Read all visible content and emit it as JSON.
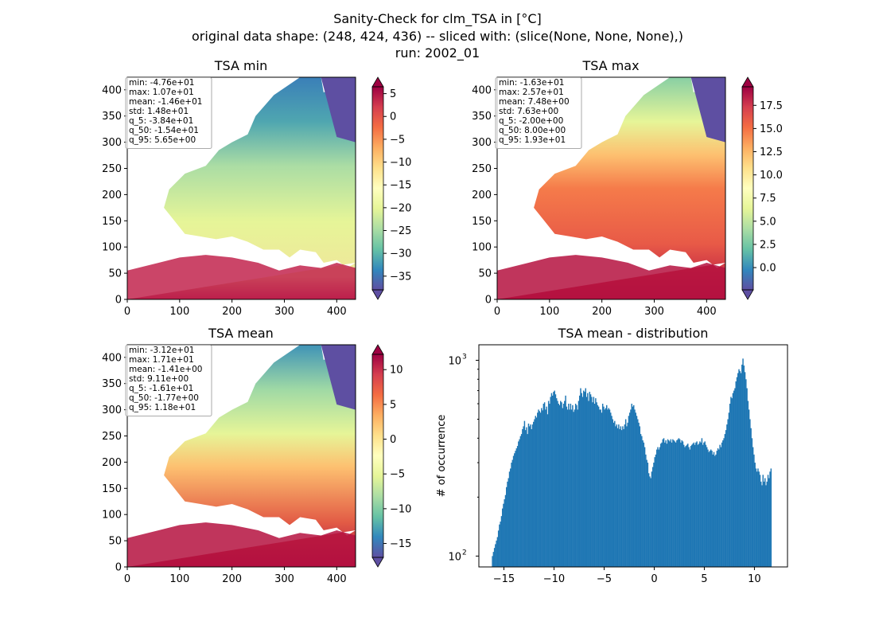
{
  "figure": {
    "suptitle": "Sanity-Check for clm_TSA in [°C]",
    "subtitle": "original data shape: (248, 424, 436) -- sliced with: (slice(None, None, None),)",
    "run": "run: 2002_01"
  },
  "colors": {
    "land_polygon_note": "Spectral_r colormap",
    "hist_bar": "#1f77b4",
    "stat_box_border": "#aaaaaa"
  },
  "map_axes": {
    "xticks": [
      "0",
      "100",
      "200",
      "300",
      "400"
    ],
    "yticks": [
      "0",
      "50",
      "100",
      "150",
      "200",
      "250",
      "300",
      "350",
      "400"
    ]
  },
  "panels": [
    {
      "title": "TSA min",
      "stats": [
        "min: -4.76e+01",
        "max: 1.07e+01",
        "mean: -1.46e+01",
        "std: 1.48e+01",
        "q_5: -3.84e+01",
        "q_50: -1.54e+01",
        "q_95: 5.65e+00"
      ],
      "colorbar": {
        "range": [
          -38,
          6.5
        ],
        "ticks": [
          "5",
          "0",
          "−5",
          "−10",
          "−15",
          "−20",
          "−25",
          "−30",
          "−35"
        ],
        "values": [
          5,
          0,
          -5,
          -10,
          -15,
          -20,
          -25,
          -30,
          -35
        ]
      }
    },
    {
      "title": "TSA max",
      "stats": [
        "min: -1.63e+01",
        "max: 2.57e+01",
        "mean: 7.48e+00",
        "std: 7.63e+00",
        "q_5: -2.00e+00",
        "q_50: 8.00e+00",
        "q_95: 1.93e+01"
      ],
      "colorbar": {
        "range": [
          -2.4,
          19.5
        ],
        "ticks": [
          "17.5",
          "15.0",
          "12.5",
          "10.0",
          "7.5",
          "5.0",
          "2.5",
          "0.0"
        ],
        "values": [
          17.5,
          15,
          12.5,
          10,
          7.5,
          5,
          2.5,
          0
        ]
      }
    },
    {
      "title": "TSA mean",
      "stats": [
        "min: -3.12e+01",
        "max: 1.71e+01",
        "mean: -1.41e+00",
        "std: 9.11e+00",
        "q_5: -1.61e+01",
        "q_50: -1.77e+00",
        "q_95: 1.18e+01"
      ],
      "colorbar": {
        "range": [
          -17,
          12.2
        ],
        "ticks": [
          "10",
          "5",
          "0",
          "−5",
          "−10",
          "−15"
        ],
        "values": [
          10,
          5,
          0,
          -5,
          -10,
          -15
        ]
      }
    }
  ],
  "chart_data": {
    "type": "bar",
    "title": "TSA mean - distribution",
    "xlabel": "",
    "ylabel": "# of occurrence",
    "xlim": [
      -17.5,
      13.3
    ],
    "ylim": [
      88,
      1200
    ],
    "yscale": "log",
    "xticks": [
      "−15",
      "−10",
      "−5",
      "0",
      "5",
      "10"
    ],
    "xtick_values": [
      -15,
      -10,
      -5,
      0,
      5,
      10
    ],
    "yticks": [
      "10",
      "10"
    ],
    "ytick_exp": [
      "2",
      "3"
    ],
    "ytick_values": [
      100,
      1000
    ],
    "bin_start": -16.2,
    "bin_width": 0.1,
    "values": [
      100,
      105,
      110,
      115,
      120,
      125,
      135,
      145,
      150,
      160,
      175,
      185,
      195,
      205,
      225,
      240,
      250,
      270,
      280,
      300,
      310,
      325,
      335,
      345,
      355,
      365,
      385,
      395,
      410,
      420,
      445,
      460,
      490,
      440,
      455,
      420,
      475,
      460,
      470,
      445,
      470,
      485,
      500,
      520,
      510,
      540,
      560,
      550,
      540,
      570,
      555,
      600,
      610,
      560,
      580,
      530,
      620,
      600,
      650,
      680,
      660,
      690,
      700,
      670,
      640,
      620,
      600,
      590,
      620,
      610,
      570,
      600,
      620,
      660,
      580,
      560,
      600,
      560,
      600,
      560,
      590,
      545,
      560,
      600,
      590,
      560,
      620,
      660,
      720,
      680,
      650,
      700,
      690,
      720,
      650,
      680,
      620,
      690,
      670,
      650,
      610,
      650,
      600,
      640,
      610,
      590,
      580,
      560,
      560,
      540,
      600,
      580,
      560,
      570,
      590,
      560,
      570,
      560,
      540,
      520,
      500,
      480,
      490,
      460,
      470,
      450,
      470,
      445,
      460,
      440,
      460,
      445,
      470,
      500,
      460,
      480,
      520,
      540,
      560,
      600,
      580,
      590,
      560,
      540,
      520,
      500,
      480,
      460,
      420,
      410,
      390,
      380,
      360,
      330,
      310,
      300,
      265,
      255,
      250,
      270,
      285,
      300,
      320,
      330,
      350,
      360,
      350,
      360,
      375,
      380,
      395,
      400,
      380,
      390,
      375,
      395,
      390,
      385,
      395,
      380,
      395,
      390,
      385,
      380,
      390,
      395,
      400,
      395,
      380,
      390,
      385,
      370,
      360,
      365,
      370,
      375,
      360,
      350,
      365,
      370,
      375,
      380,
      370,
      380,
      385,
      370,
      375,
      385,
      380,
      400,
      370,
      380,
      385,
      370,
      360,
      350,
      340,
      345,
      350,
      345,
      330,
      340,
      325,
      330,
      345,
      355,
      350,
      370,
      360,
      380,
      390,
      400,
      420,
      440,
      470,
      500,
      540,
      600,
      650,
      640,
      680,
      700,
      720,
      780,
      820,
      860,
      900,
      880,
      860,
      950,
      1020,
      940,
      870,
      800,
      720,
      620,
      560,
      500,
      450,
      400,
      360,
      330,
      300,
      280,
      270,
      280,
      270,
      260,
      240,
      230,
      260,
      240,
      250,
      230,
      240,
      260,
      250,
      270,
      280
    ]
  }
}
